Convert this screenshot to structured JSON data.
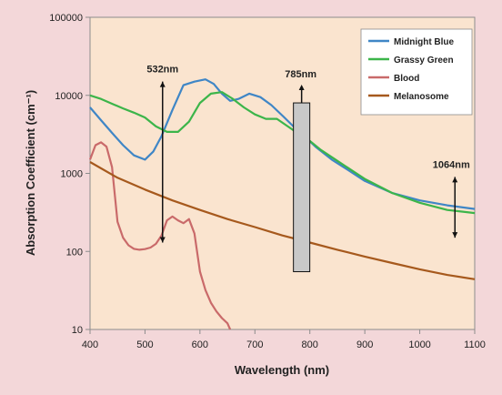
{
  "colors": {
    "page_background": "#f3d7d9",
    "plot_background": "#fae4cf",
    "midnight_blue": "#3f86c6",
    "grassy_green": "#3cb54a",
    "blood": "#c96a6a",
    "melanosome": "#a6591d",
    "bar_fill": "#c8c8c8"
  },
  "chart_data": {
    "type": "line",
    "title": "",
    "xlabel": "Wavelength (nm)",
    "ylabel": "Absorption Coefficient (cm⁻¹)",
    "xlim": [
      400,
      1100
    ],
    "ylim": [
      10,
      100000
    ],
    "y_scale": "log",
    "x_ticks": [
      "400",
      "500",
      "600",
      "700",
      "800",
      "900",
      "1000",
      "1100"
    ],
    "y_ticks": [
      "10",
      "100",
      "1000",
      "10000",
      "100000"
    ],
    "grid": false,
    "legend_position": "top-right",
    "series": [
      {
        "name": "Midnight Blue",
        "color": "#3f86c6",
        "x": [
          400,
          420,
          440,
          460,
          480,
          500,
          515,
          530,
          550,
          570,
          590,
          610,
          625,
          640,
          655,
          670,
          690,
          710,
          730,
          750,
          770,
          790,
          810,
          840,
          870,
          900,
          950,
          1000,
          1050,
          1100
        ],
        "y": [
          7000,
          4800,
          3300,
          2300,
          1700,
          1500,
          1900,
          3000,
          6500,
          13500,
          15000,
          16000,
          14000,
          10500,
          8500,
          9000,
          10500,
          9500,
          7500,
          5500,
          4000,
          3000,
          2200,
          1500,
          1100,
          800,
          560,
          450,
          390,
          350
        ]
      },
      {
        "name": "Grassy Green",
        "color": "#3cb54a",
        "x": [
          400,
          420,
          440,
          460,
          480,
          500,
          520,
          540,
          560,
          580,
          600,
          620,
          640,
          660,
          680,
          700,
          720,
          740,
          760,
          780,
          800,
          820,
          850,
          880,
          900,
          950,
          1000,
          1050,
          1100
        ],
        "y": [
          10000,
          9000,
          7800,
          6800,
          6000,
          5200,
          4000,
          3400,
          3400,
          4600,
          8000,
          10500,
          11000,
          9000,
          7000,
          5700,
          5000,
          5000,
          4000,
          3200,
          2600,
          2000,
          1450,
          1050,
          850,
          560,
          420,
          340,
          310
        ]
      },
      {
        "name": "Blood",
        "color": "#c96a6a",
        "x": [
          400,
          410,
          420,
          430,
          440,
          450,
          460,
          470,
          480,
          490,
          500,
          510,
          520,
          530,
          540,
          550,
          560,
          570,
          580,
          590,
          600,
          610,
          620,
          630,
          640,
          650,
          655
        ],
        "y": [
          1500,
          2300,
          2500,
          2200,
          1200,
          240,
          150,
          120,
          108,
          105,
          107,
          112,
          125,
          160,
          250,
          280,
          250,
          230,
          260,
          170,
          55,
          32,
          22,
          17,
          14,
          12,
          10
        ]
      },
      {
        "name": "Melanosome",
        "color": "#a6591d",
        "x": [
          400,
          450,
          500,
          550,
          600,
          650,
          700,
          750,
          800,
          850,
          900,
          950,
          1000,
          1050,
          1100
        ],
        "y": [
          1400,
          880,
          620,
          450,
          340,
          260,
          205,
          160,
          130,
          105,
          86,
          71,
          59,
          50,
          44
        ]
      }
    ],
    "annotations": [
      {
        "label": "532nm",
        "x": 532,
        "y_from": 130,
        "y_to": 15000
      },
      {
        "label": "785nm",
        "x": 785,
        "y_from": 55,
        "y_to": 8000
      },
      {
        "label": "1064nm",
        "x": 1064,
        "y_from": 150,
        "y_to": 900
      }
    ]
  }
}
